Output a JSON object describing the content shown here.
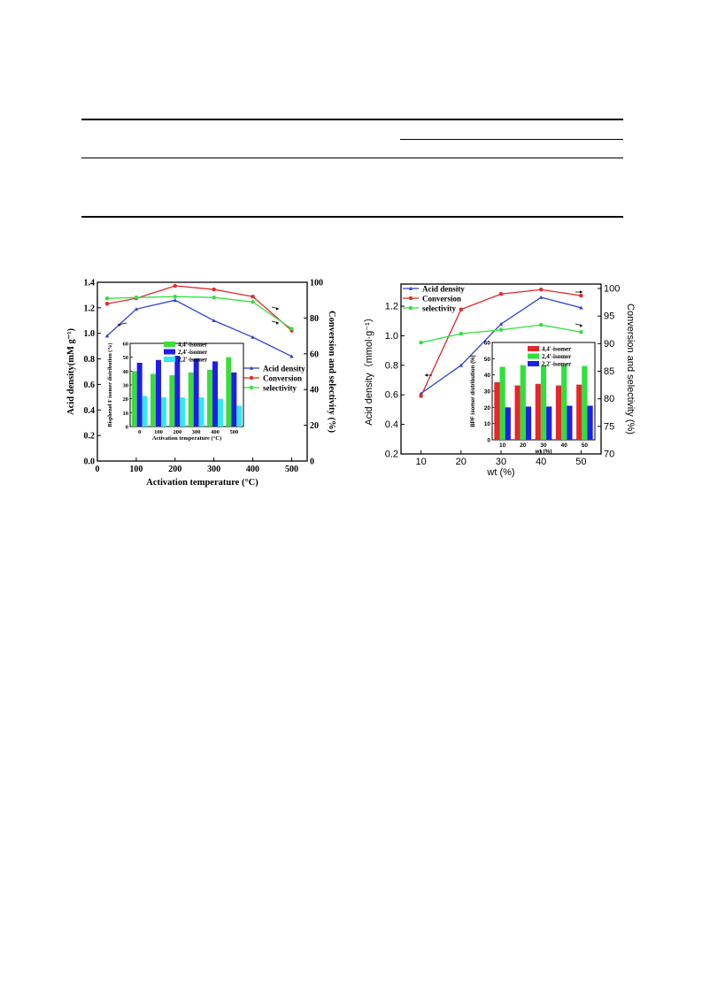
{
  "colors": {
    "blue": "#2a3fe0",
    "red": "#e5262b",
    "green": "#2ee13a",
    "cyan": "#33e8ef",
    "lime": "#3bdc3b",
    "inset_blue": "#1e1ee8"
  },
  "chart_data": [
    {
      "type": "line",
      "title": "",
      "xlabel": "Activation temperature (°C)",
      "ylabel": "Acid density(mM g⁻¹)",
      "y2label": "Conversion and selectivity (%)",
      "xlim": [
        0,
        540
      ],
      "ylim": [
        0.0,
        1.4
      ],
      "y2lim": [
        0,
        100
      ],
      "xticks": [
        "0",
        "100",
        "200",
        "300",
        "400",
        "500"
      ],
      "yticks": [
        "0.0",
        "0.2",
        "0.4",
        "0.6",
        "0.8",
        "1.0",
        "1.2",
        "1.4"
      ],
      "y2ticks": [
        "0",
        "20",
        "40",
        "60",
        "80",
        "100"
      ],
      "legend_position": "right-middle",
      "x": [
        25,
        100,
        200,
        300,
        400,
        500
      ],
      "series": [
        {
          "name": "Acid density",
          "axis": "left",
          "values": [
            0.98,
            1.19,
            1.26,
            1.1,
            0.97,
            0.82
          ]
        },
        {
          "name": "Conversion",
          "axis": "right",
          "values": [
            88,
            91,
            98,
            96,
            92,
            73
          ]
        },
        {
          "name": "selectivity",
          "axis": "right",
          "values": [
            91,
            91.5,
            92,
            91.5,
            89,
            74
          ]
        }
      ],
      "inset": {
        "type": "bar",
        "xlabel": "Activation temperature (°C)",
        "ylabel": "Bisphenol F isomer distribution (%)",
        "ylim": [
          0,
          60
        ],
        "yticks": [
          "0",
          "10",
          "20",
          "30",
          "40",
          "50",
          "60"
        ],
        "categories": [
          "0",
          "100",
          "200",
          "300",
          "400",
          "500"
        ],
        "legend_position": "top-left",
        "series": [
          {
            "name": "4,4'-isomer",
            "values": [
              40,
              38,
              37,
              39,
              41,
              50
            ]
          },
          {
            "name": "2,4'-isomer",
            "values": [
              46,
              48,
              51,
              49,
              47,
              39
            ]
          },
          {
            "name": "2,2'-isomer",
            "values": [
              22,
              21,
              21,
              21,
              20,
              15
            ]
          }
        ]
      }
    },
    {
      "type": "line",
      "title": "",
      "xlabel": "wt (%)",
      "ylabel": "Acid density（mmol·g⁻¹）",
      "y2label": "Conversion and selectivity (%)",
      "xlim": [
        5,
        55
      ],
      "ylim": [
        0.2,
        1.35
      ],
      "y2lim": [
        70,
        100.8
      ],
      "xticks": [
        "10",
        "20",
        "30",
        "40",
        "50"
      ],
      "yticks": [
        "0.2",
        "0.4",
        "0.6",
        "0.8",
        "1.0",
        "1.2"
      ],
      "y2ticks": [
        "70",
        "75",
        "80",
        "85",
        "90",
        "95",
        "100"
      ],
      "legend_position": "top-left",
      "x": [
        10,
        20,
        30,
        40,
        50
      ],
      "series": [
        {
          "name": "Acid density",
          "axis": "left",
          "values": [
            0.61,
            0.8,
            1.08,
            1.26,
            1.19
          ]
        },
        {
          "name": "Conversion",
          "axis": "right",
          "values": [
            80.5,
            96.2,
            99.0,
            99.8,
            98.7
          ]
        },
        {
          "name": "selectivity",
          "axis": "right",
          "values": [
            90.2,
            91.8,
            92.5,
            93.4,
            92.1
          ]
        }
      ],
      "inset": {
        "type": "bar",
        "xlabel": "wt (%)",
        "ylabel": "BPF isomer distribution (%)",
        "ylim": [
          0,
          60
        ],
        "yticks": [
          "0",
          "10",
          "20",
          "30",
          "40",
          "50",
          "60"
        ],
        "categories": [
          "10",
          "20",
          "30",
          "40",
          "50"
        ],
        "legend_position": "top-center",
        "series": [
          {
            "name": "4,4'-isomer",
            "values": [
              35.5,
              33.5,
              34.5,
              33.5,
              34
            ]
          },
          {
            "name": "2,4'-isomer",
            "values": [
              45,
              46,
              46,
              46,
              45.5
            ]
          },
          {
            "name": "2,2'-isomer",
            "values": [
              20,
              20.5,
              20.5,
              21,
              21
            ]
          }
        ]
      }
    }
  ]
}
